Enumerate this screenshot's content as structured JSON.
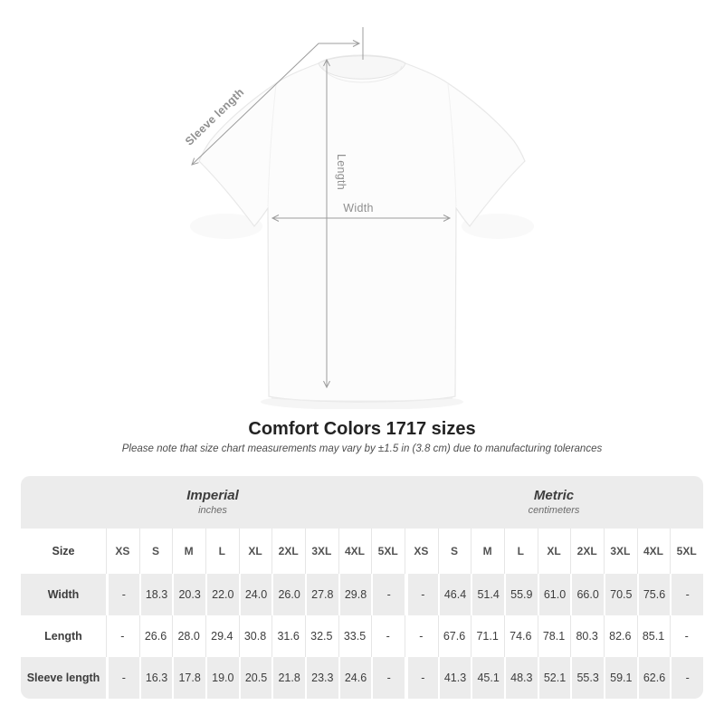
{
  "diagram": {
    "labels": {
      "sleeve_length": "Sleeve length",
      "length": "Length",
      "width": "Width"
    }
  },
  "title": "Comfort Colors 1717 sizes",
  "subtitle": "Please note that size chart measurements may vary by ±1.5 in (3.8 cm) due to manufacturing tolerances",
  "size_chart": {
    "units": [
      {
        "name": "Imperial",
        "sub": "inches"
      },
      {
        "name": "Metric",
        "sub": "centimeters"
      }
    ],
    "size_column_header": "Size",
    "sizes": [
      "XS",
      "S",
      "M",
      "L",
      "XL",
      "2XL",
      "3XL",
      "4XL",
      "5XL"
    ],
    "rows": [
      {
        "label": "Width",
        "imperial": [
          "-",
          "18.3",
          "20.3",
          "22.0",
          "24.0",
          "26.0",
          "27.8",
          "29.8",
          "-"
        ],
        "metric": [
          "-",
          "46.4",
          "51.4",
          "55.9",
          "61.0",
          "66.0",
          "70.5",
          "75.6",
          "-"
        ]
      },
      {
        "label": "Length",
        "imperial": [
          "-",
          "26.6",
          "28.0",
          "29.4",
          "30.8",
          "31.6",
          "32.5",
          "33.5",
          "-"
        ],
        "metric": [
          "-",
          "67.6",
          "71.1",
          "74.6",
          "78.1",
          "80.3",
          "82.6",
          "85.1",
          "-"
        ]
      },
      {
        "label": "Sleeve length",
        "imperial": [
          "-",
          "16.3",
          "17.8",
          "19.0",
          "20.5",
          "21.8",
          "23.3",
          "24.6",
          "-"
        ],
        "metric": [
          "-",
          "41.3",
          "45.1",
          "48.3",
          "52.1",
          "55.3",
          "59.1",
          "62.6",
          "-"
        ]
      }
    ]
  },
  "colors": {
    "table_band": "#ececec",
    "row_shade": "#ececec",
    "measure_line": "#9c9c9c",
    "label_gray": "#8f8f8f",
    "text_dark": "#3d3d3d"
  }
}
